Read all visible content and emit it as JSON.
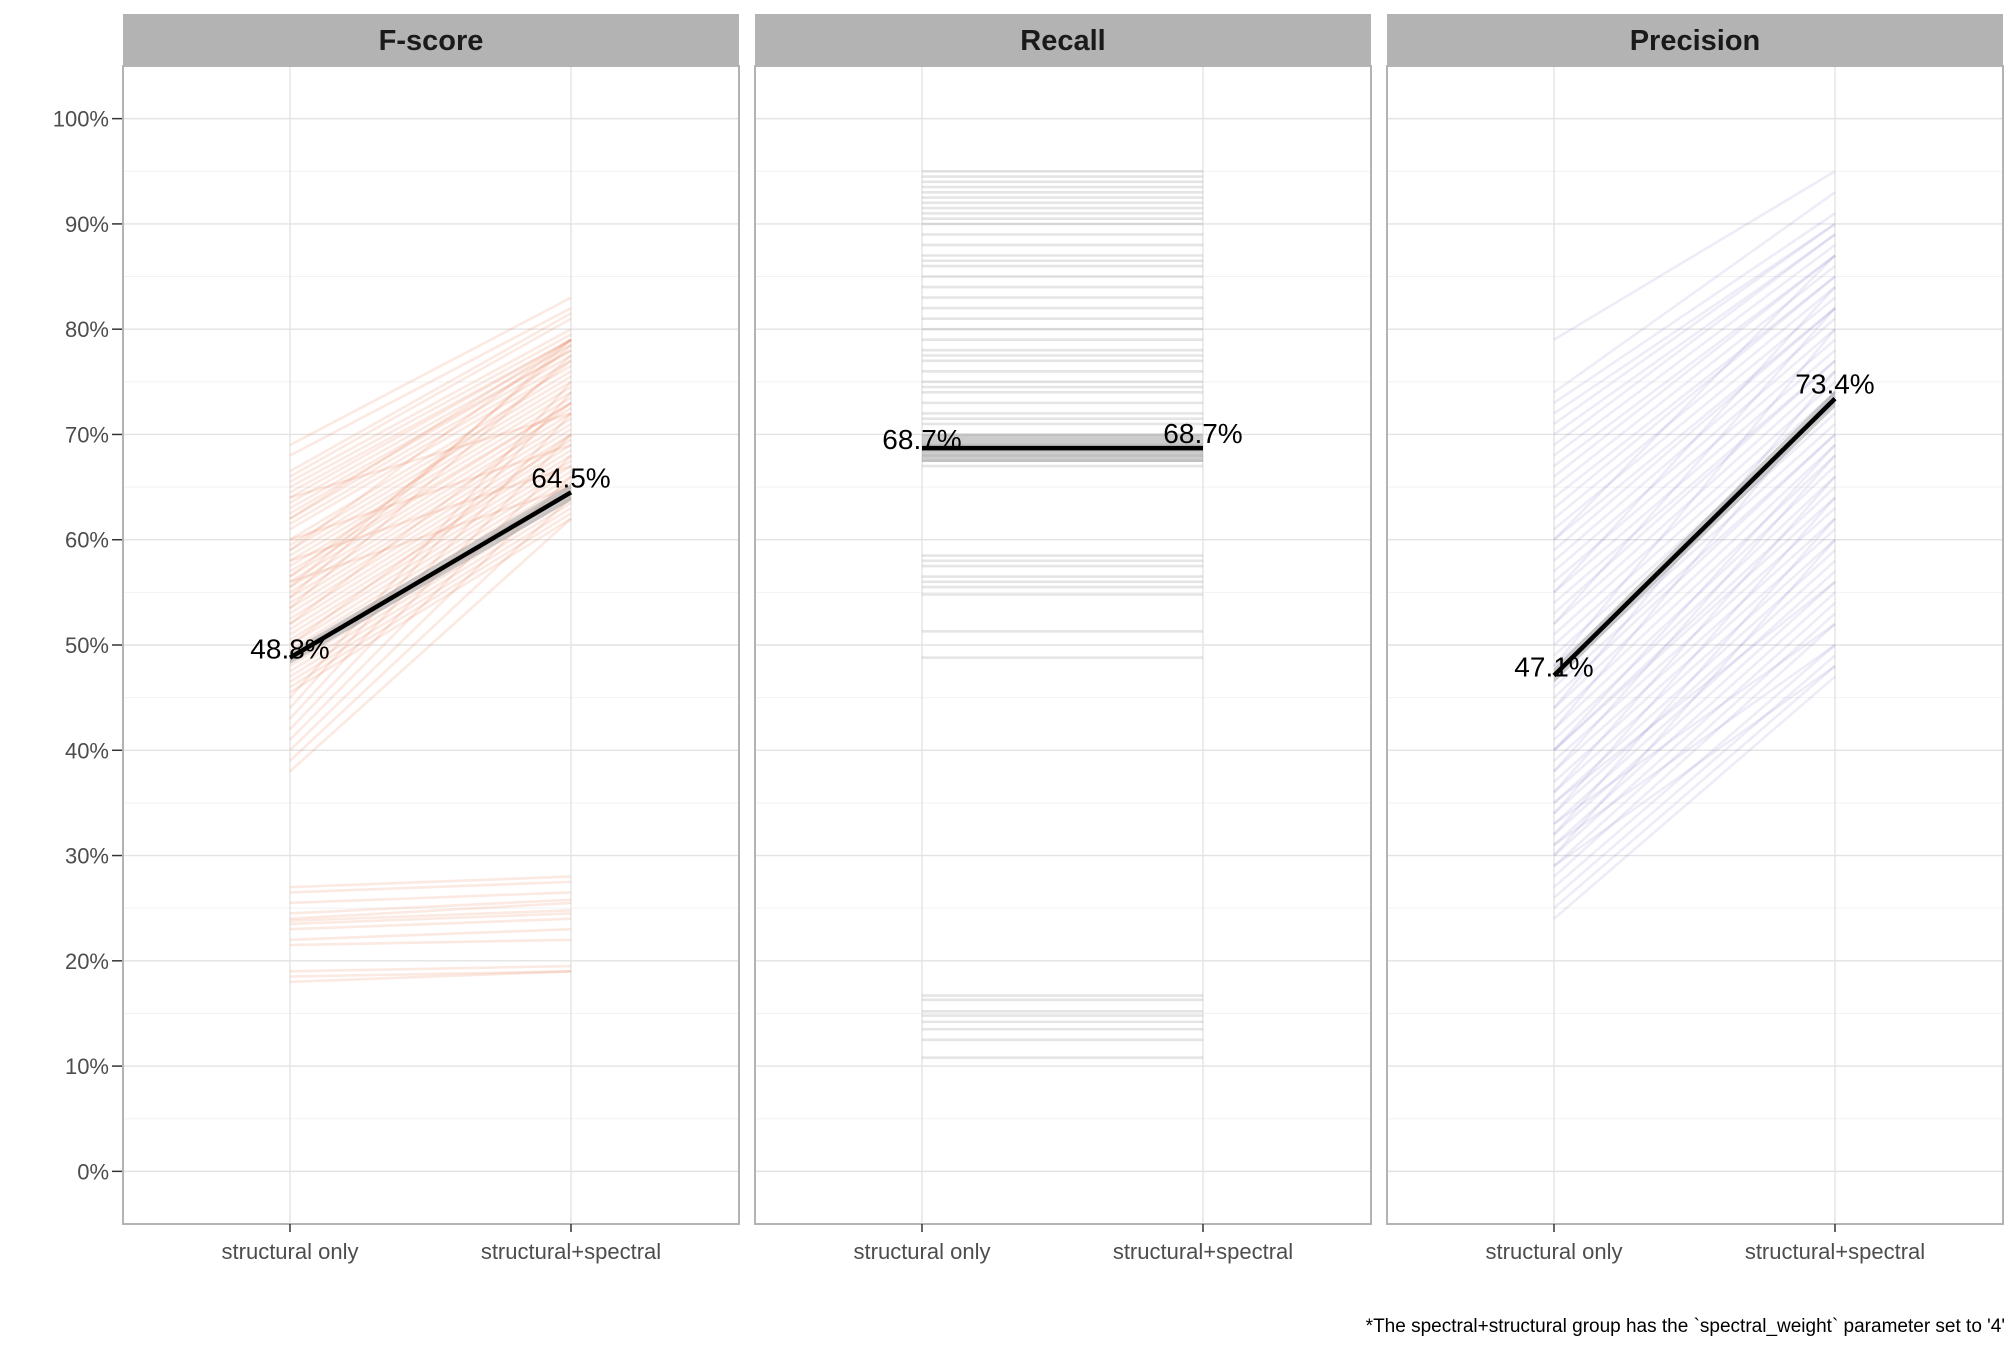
{
  "caption": "*The spectral+structural group has the `spectral_weight` parameter set to '4'",
  "chart_data": {
    "type": "line",
    "ylim": [
      -0.05,
      1.05
    ],
    "y_ticks": [
      0,
      0.1,
      0.2,
      0.3,
      0.4,
      0.5,
      0.6,
      0.7,
      0.8,
      0.9,
      1.0
    ],
    "y_tick_labels": [
      "0%",
      "10%",
      "20%",
      "30%",
      "40%",
      "50%",
      "60%",
      "70%",
      "80%",
      "90%",
      "100%"
    ],
    "categories": [
      "structural only",
      "structural+spectral"
    ],
    "grid": true,
    "panels": [
      {
        "name": "F-score",
        "color": "#e8764a",
        "line_opacity": 0.16,
        "mean": [
          0.488,
          0.645
        ],
        "mean_labels": [
          "48.8%",
          "64.5%"
        ],
        "ribbon_halfwidth": [
          0.006,
          0.008
        ],
        "pairs": [
          [
            0.69,
            0.83
          ],
          [
            0.68,
            0.82
          ],
          [
            0.665,
            0.815
          ],
          [
            0.66,
            0.81
          ],
          [
            0.655,
            0.8
          ],
          [
            0.65,
            0.795
          ],
          [
            0.645,
            0.79
          ],
          [
            0.64,
            0.79
          ],
          [
            0.635,
            0.785
          ],
          [
            0.63,
            0.78
          ],
          [
            0.625,
            0.78
          ],
          [
            0.62,
            0.775
          ],
          [
            0.615,
            0.77
          ],
          [
            0.61,
            0.765
          ],
          [
            0.6,
            0.76
          ],
          [
            0.595,
            0.755
          ],
          [
            0.59,
            0.75
          ],
          [
            0.585,
            0.745
          ],
          [
            0.58,
            0.74
          ],
          [
            0.575,
            0.735
          ],
          [
            0.57,
            0.73
          ],
          [
            0.565,
            0.73
          ],
          [
            0.56,
            0.725
          ],
          [
            0.555,
            0.72
          ],
          [
            0.55,
            0.715
          ],
          [
            0.545,
            0.71
          ],
          [
            0.54,
            0.705
          ],
          [
            0.535,
            0.7
          ],
          [
            0.53,
            0.695
          ],
          [
            0.525,
            0.69
          ],
          [
            0.52,
            0.685
          ],
          [
            0.515,
            0.68
          ],
          [
            0.51,
            0.675
          ],
          [
            0.505,
            0.67
          ],
          [
            0.5,
            0.665
          ],
          [
            0.495,
            0.66
          ],
          [
            0.49,
            0.655
          ],
          [
            0.485,
            0.65
          ],
          [
            0.48,
            0.645
          ],
          [
            0.475,
            0.64
          ],
          [
            0.47,
            0.635
          ],
          [
            0.465,
            0.63
          ],
          [
            0.46,
            0.625
          ],
          [
            0.455,
            0.62
          ],
          [
            0.45,
            0.75
          ],
          [
            0.44,
            0.74
          ],
          [
            0.43,
            0.72
          ],
          [
            0.42,
            0.7
          ],
          [
            0.41,
            0.68
          ],
          [
            0.4,
            0.66
          ],
          [
            0.39,
            0.64
          ],
          [
            0.38,
            0.62
          ],
          [
            0.545,
            0.79
          ],
          [
            0.555,
            0.785
          ],
          [
            0.535,
            0.775
          ],
          [
            0.565,
            0.77
          ],
          [
            0.59,
            0.79
          ],
          [
            0.62,
            0.79
          ],
          [
            0.56,
            0.65
          ],
          [
            0.58,
            0.67
          ],
          [
            0.6,
            0.69
          ],
          [
            0.64,
            0.72
          ],
          [
            0.5,
            0.7
          ],
          [
            0.52,
            0.73
          ],
          [
            0.27,
            0.28
          ],
          [
            0.265,
            0.275
          ],
          [
            0.255,
            0.265
          ],
          [
            0.245,
            0.258
          ],
          [
            0.24,
            0.255
          ],
          [
            0.238,
            0.248
          ],
          [
            0.235,
            0.245
          ],
          [
            0.23,
            0.24
          ],
          [
            0.22,
            0.23
          ],
          [
            0.215,
            0.22
          ],
          [
            0.19,
            0.195
          ],
          [
            0.185,
            0.19
          ],
          [
            0.18,
            0.19
          ]
        ]
      },
      {
        "name": "Recall",
        "color": "#888888",
        "line_opacity": 0.22,
        "mean": [
          0.687,
          0.687
        ],
        "mean_labels": [
          "68.7%",
          "68.7%"
        ],
        "ribbon_halfwidth": [
          0.013,
          0.013
        ],
        "pairs": [
          [
            0.95,
            0.95
          ],
          [
            0.945,
            0.945
          ],
          [
            0.94,
            0.94
          ],
          [
            0.935,
            0.935
          ],
          [
            0.93,
            0.93
          ],
          [
            0.925,
            0.925
          ],
          [
            0.92,
            0.92
          ],
          [
            0.915,
            0.915
          ],
          [
            0.91,
            0.91
          ],
          [
            0.905,
            0.905
          ],
          [
            0.9,
            0.9
          ],
          [
            0.89,
            0.89
          ],
          [
            0.88,
            0.88
          ],
          [
            0.87,
            0.87
          ],
          [
            0.865,
            0.865
          ],
          [
            0.86,
            0.86
          ],
          [
            0.85,
            0.85
          ],
          [
            0.84,
            0.84
          ],
          [
            0.83,
            0.83
          ],
          [
            0.82,
            0.82
          ],
          [
            0.81,
            0.81
          ],
          [
            0.8,
            0.8
          ],
          [
            0.79,
            0.79
          ],
          [
            0.78,
            0.78
          ],
          [
            0.775,
            0.775
          ],
          [
            0.77,
            0.77
          ],
          [
            0.76,
            0.76
          ],
          [
            0.75,
            0.75
          ],
          [
            0.745,
            0.745
          ],
          [
            0.74,
            0.74
          ],
          [
            0.73,
            0.73
          ],
          [
            0.72,
            0.72
          ],
          [
            0.715,
            0.715
          ],
          [
            0.71,
            0.71
          ],
          [
            0.7,
            0.7
          ],
          [
            0.69,
            0.69
          ],
          [
            0.685,
            0.685
          ],
          [
            0.68,
            0.68
          ],
          [
            0.675,
            0.675
          ],
          [
            0.67,
            0.67
          ],
          [
            0.585,
            0.585
          ],
          [
            0.58,
            0.58
          ],
          [
            0.575,
            0.575
          ],
          [
            0.565,
            0.565
          ],
          [
            0.56,
            0.56
          ],
          [
            0.555,
            0.555
          ],
          [
            0.548,
            0.548
          ],
          [
            0.513,
            0.513
          ],
          [
            0.488,
            0.488
          ],
          [
            0.167,
            0.167
          ],
          [
            0.163,
            0.163
          ],
          [
            0.152,
            0.152
          ],
          [
            0.148,
            0.148
          ],
          [
            0.142,
            0.142
          ],
          [
            0.135,
            0.135
          ],
          [
            0.125,
            0.125
          ],
          [
            0.108,
            0.108
          ]
        ]
      },
      {
        "name": "Precision",
        "color": "#7b6fc4",
        "line_opacity": 0.13,
        "mean": [
          0.471,
          0.734
        ],
        "mean_labels": [
          "47.1%",
          "73.4%"
        ],
        "ribbon_halfwidth": [
          0.007,
          0.008
        ],
        "pairs": [
          [
            0.79,
            0.95
          ],
          [
            0.74,
            0.93
          ],
          [
            0.73,
            0.91
          ],
          [
            0.72,
            0.9
          ],
          [
            0.71,
            0.9
          ],
          [
            0.7,
            0.89
          ],
          [
            0.69,
            0.89
          ],
          [
            0.68,
            0.88
          ],
          [
            0.67,
            0.87
          ],
          [
            0.66,
            0.87
          ],
          [
            0.65,
            0.86
          ],
          [
            0.64,
            0.85
          ],
          [
            0.63,
            0.85
          ],
          [
            0.62,
            0.84
          ],
          [
            0.61,
            0.83
          ],
          [
            0.6,
            0.82
          ],
          [
            0.59,
            0.82
          ],
          [
            0.58,
            0.81
          ],
          [
            0.57,
            0.8
          ],
          [
            0.56,
            0.79
          ],
          [
            0.55,
            0.78
          ],
          [
            0.54,
            0.77
          ],
          [
            0.53,
            0.77
          ],
          [
            0.52,
            0.76
          ],
          [
            0.51,
            0.75
          ],
          [
            0.5,
            0.74
          ],
          [
            0.49,
            0.73
          ],
          [
            0.48,
            0.72
          ],
          [
            0.47,
            0.71
          ],
          [
            0.46,
            0.7
          ],
          [
            0.45,
            0.7
          ],
          [
            0.44,
            0.69
          ],
          [
            0.43,
            0.68
          ],
          [
            0.42,
            0.67
          ],
          [
            0.41,
            0.66
          ],
          [
            0.4,
            0.65
          ],
          [
            0.4,
            0.64
          ],
          [
            0.39,
            0.63
          ],
          [
            0.38,
            0.62
          ],
          [
            0.37,
            0.61
          ],
          [
            0.36,
            0.6
          ],
          [
            0.35,
            0.59
          ],
          [
            0.34,
            0.58
          ],
          [
            0.33,
            0.57
          ],
          [
            0.32,
            0.56
          ],
          [
            0.31,
            0.55
          ],
          [
            0.3,
            0.54
          ],
          [
            0.29,
            0.53
          ],
          [
            0.28,
            0.52
          ],
          [
            0.27,
            0.5
          ],
          [
            0.26,
            0.49
          ],
          [
            0.25,
            0.48
          ],
          [
            0.24,
            0.47
          ],
          [
            0.4,
            0.69
          ],
          [
            0.38,
            0.68
          ],
          [
            0.36,
            0.66
          ],
          [
            0.34,
            0.64
          ],
          [
            0.32,
            0.62
          ],
          [
            0.3,
            0.6
          ],
          [
            0.55,
            0.84
          ],
          [
            0.52,
            0.82
          ],
          [
            0.48,
            0.8
          ],
          [
            0.44,
            0.76
          ],
          [
            0.42,
            0.74
          ],
          [
            0.6,
            0.87
          ],
          [
            0.35,
            0.56
          ],
          [
            0.33,
            0.52
          ],
          [
            0.31,
            0.5
          ],
          [
            0.29,
            0.48
          ]
        ]
      }
    ]
  }
}
